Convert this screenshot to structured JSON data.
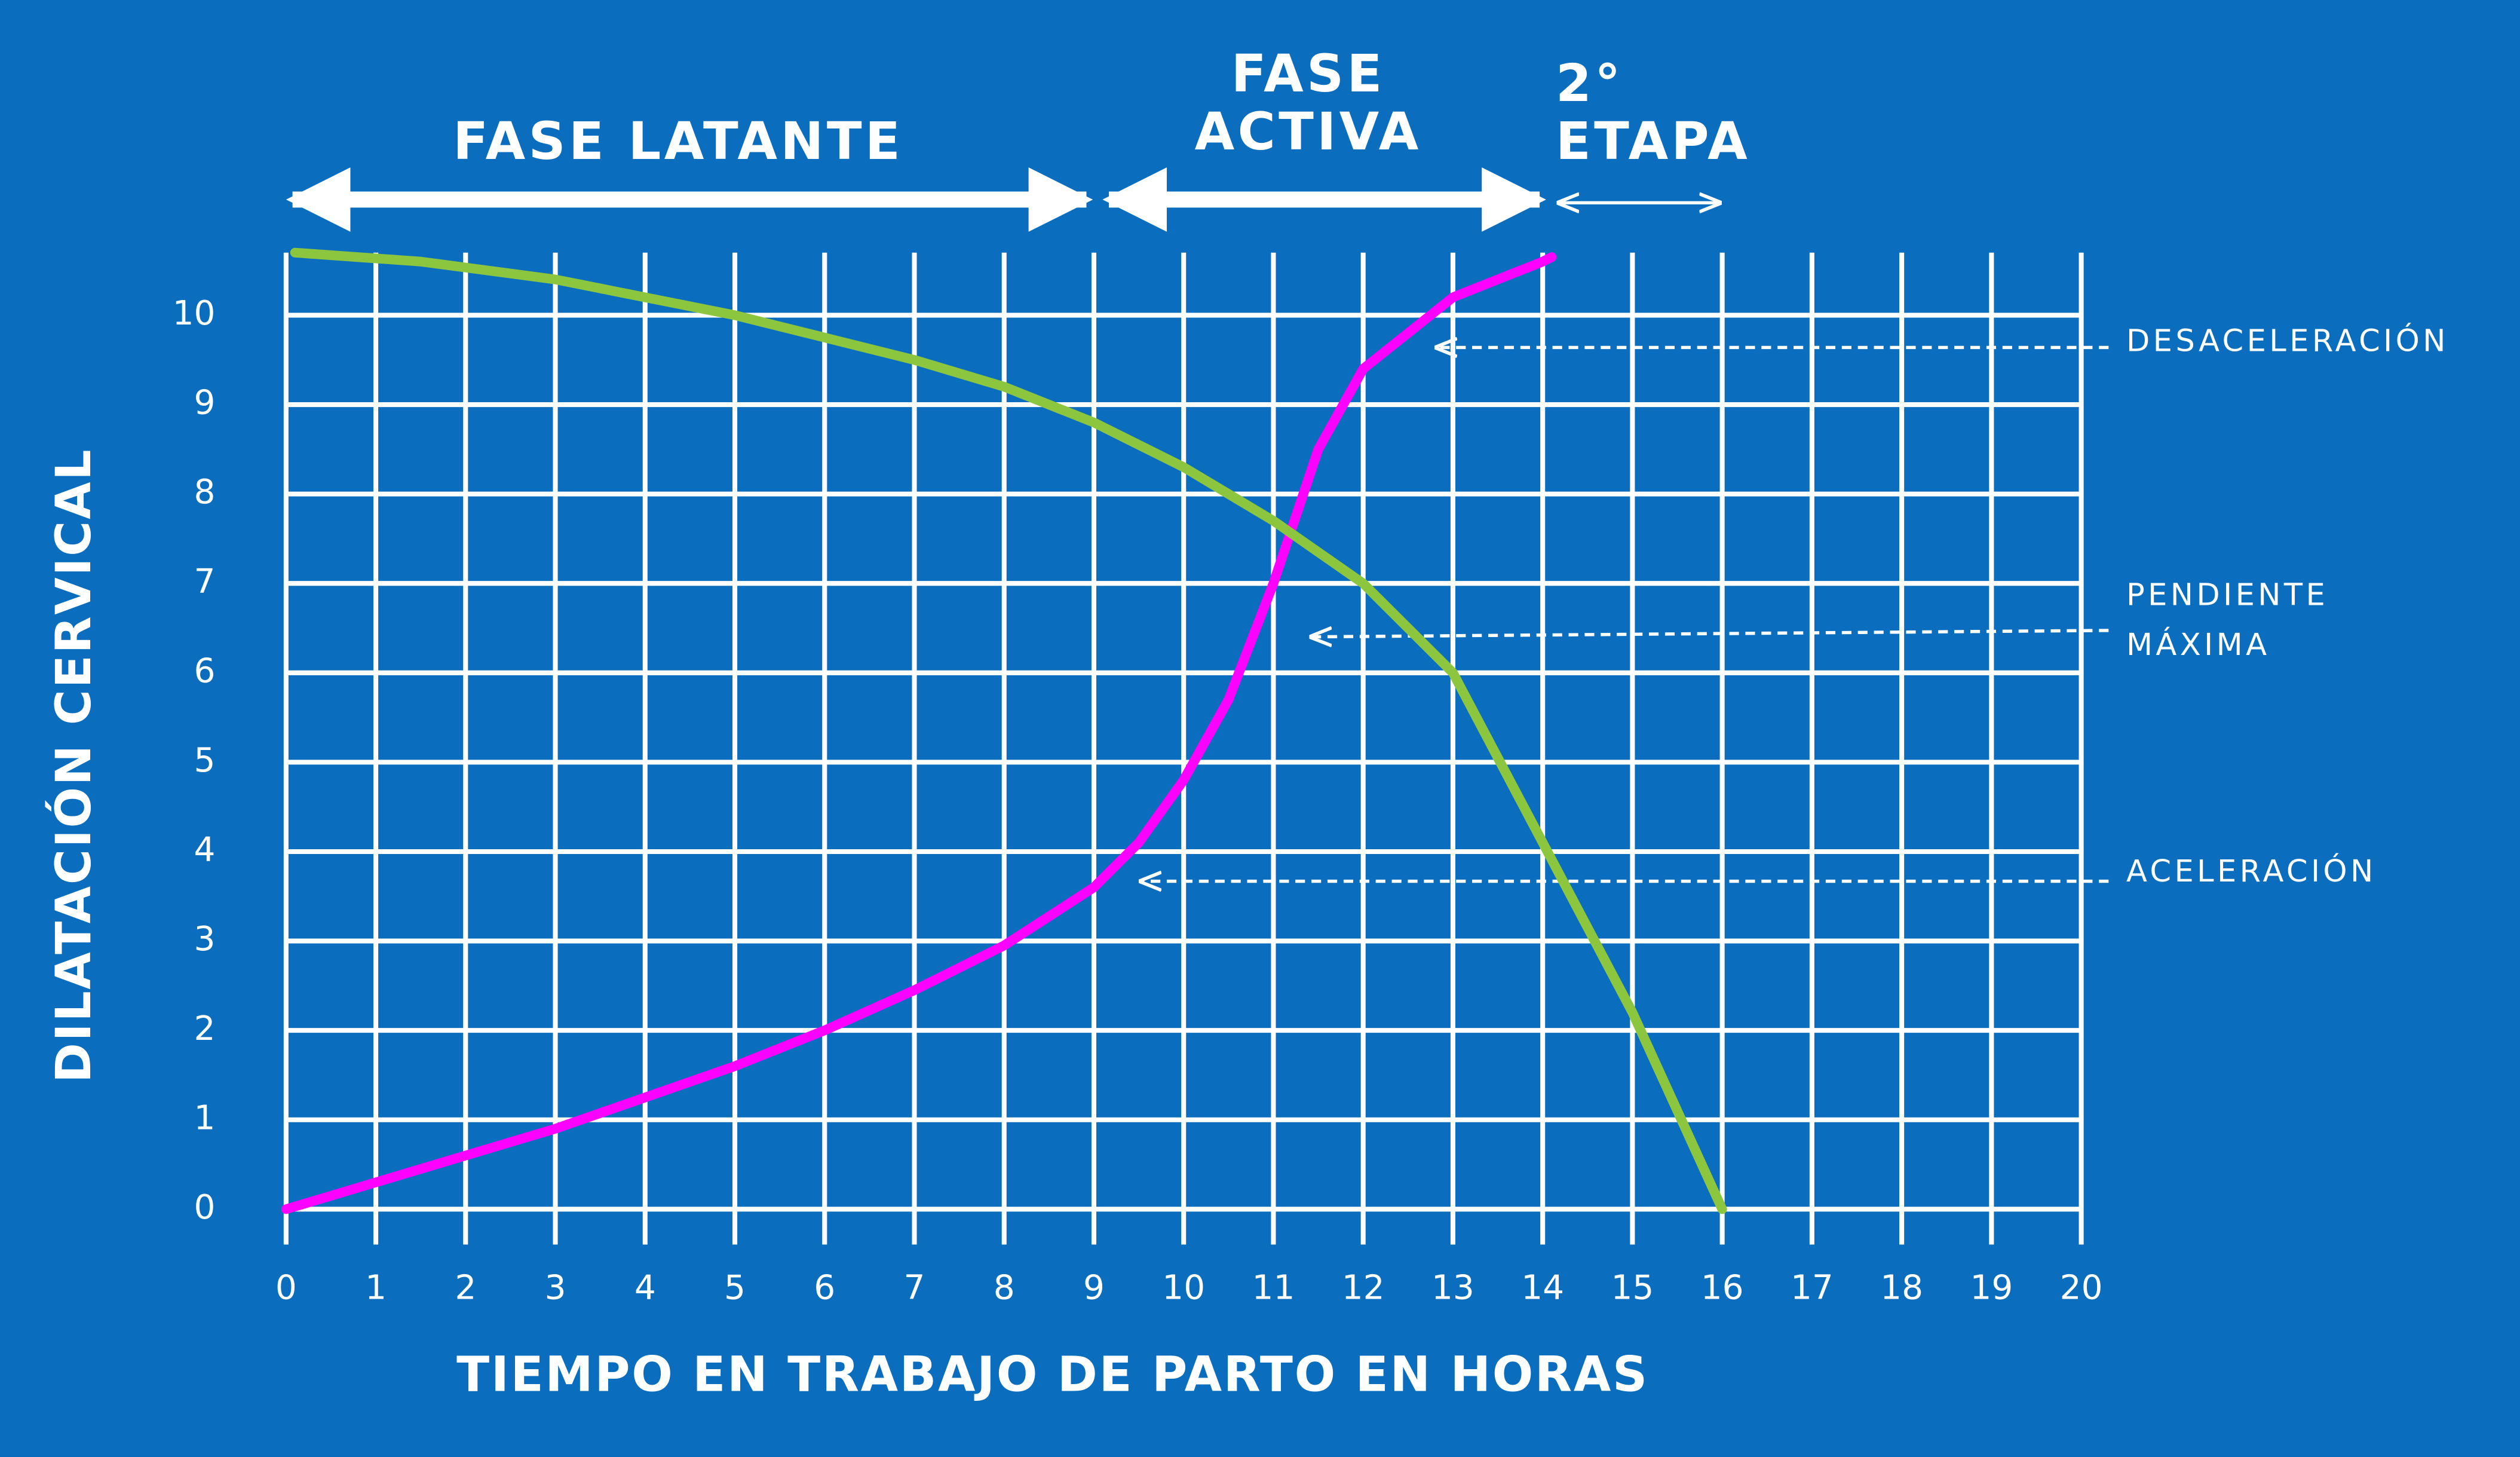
{
  "chart_data": {
    "type": "line",
    "xlabel": "TIEMPO EN TRABAJO DE PARTO EN HORAS",
    "ylabel": "DILATACIÓN CERVICAL",
    "xlim": [
      0,
      20
    ],
    "xticks": [
      0,
      1,
      2,
      3,
      4,
      5,
      6,
      7,
      8,
      9,
      10,
      11,
      12,
      13,
      14,
      15,
      16,
      17,
      18,
      19,
      20
    ],
    "ylim": [
      0,
      10.7
    ],
    "yticks": [
      0,
      1,
      2,
      3,
      4,
      5,
      6,
      7,
      8,
      9,
      10
    ],
    "grid": true,
    "series": [
      {
        "color": "#ff00ff",
        "x": [
          0,
          1,
          2,
          3,
          4,
          5,
          6,
          7,
          8,
          9,
          9.5,
          10,
          10.5,
          11,
          11.5,
          12,
          13,
          14,
          14.1
        ],
        "values": [
          0,
          0.3,
          0.6,
          0.9,
          1.25,
          1.6,
          2.0,
          2.45,
          2.95,
          3.6,
          4.1,
          4.8,
          5.7,
          7.0,
          8.5,
          9.4,
          10.2,
          10.6,
          10.65
        ]
      },
      {
        "color": "#8cc63f",
        "x": [
          0.1,
          1.5,
          3,
          4,
          5,
          6,
          7,
          8,
          9,
          10,
          11,
          12,
          13,
          14,
          15,
          16
        ],
        "values": [
          10.7,
          10.6,
          10.4,
          10.2,
          10.0,
          9.75,
          9.5,
          9.2,
          8.8,
          8.3,
          7.7,
          7.0,
          6.0,
          4.1,
          2.2,
          0
        ]
      }
    ],
    "phases": [
      {
        "lines": [
          "FASE LATANTE"
        ]
      },
      {
        "lines": [
          "FASE",
          "ACTIVA"
        ]
      },
      {
        "lines": [
          "2°",
          "ETAPA"
        ]
      }
    ],
    "annotations": [
      {
        "lines": [
          "DESACELERACIÓN"
        ]
      },
      {
        "lines": [
          "PENDIENTE",
          "MÁXIMA"
        ]
      },
      {
        "lines": [
          "ACELERACIÓN"
        ]
      }
    ]
  }
}
